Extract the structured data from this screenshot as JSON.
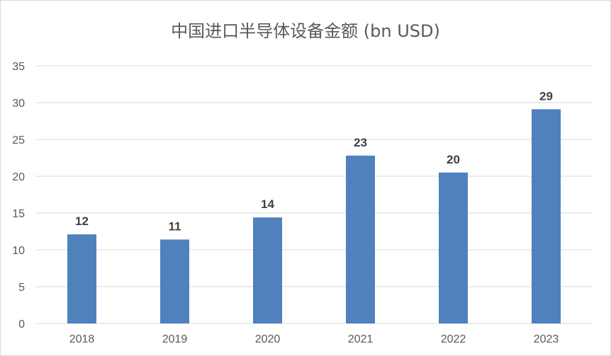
{
  "chart_data": {
    "type": "bar",
    "title": "中国进口半导体设备金额 (bn USD)",
    "categories": [
      "2018",
      "2019",
      "2020",
      "2021",
      "2022",
      "2023"
    ],
    "values": [
      12.1,
      11.4,
      14.4,
      22.8,
      20.5,
      29.1
    ],
    "data_labels": [
      "12",
      "11",
      "14",
      "23",
      "20",
      "29"
    ],
    "yticks": [
      "0",
      "5",
      "10",
      "15",
      "20",
      "25",
      "30",
      "35"
    ],
    "ylim": [
      0,
      35
    ],
    "grid": true,
    "legend": "none",
    "bar_color": "#4f81bd",
    "grid_color": "#d9d9d9"
  }
}
